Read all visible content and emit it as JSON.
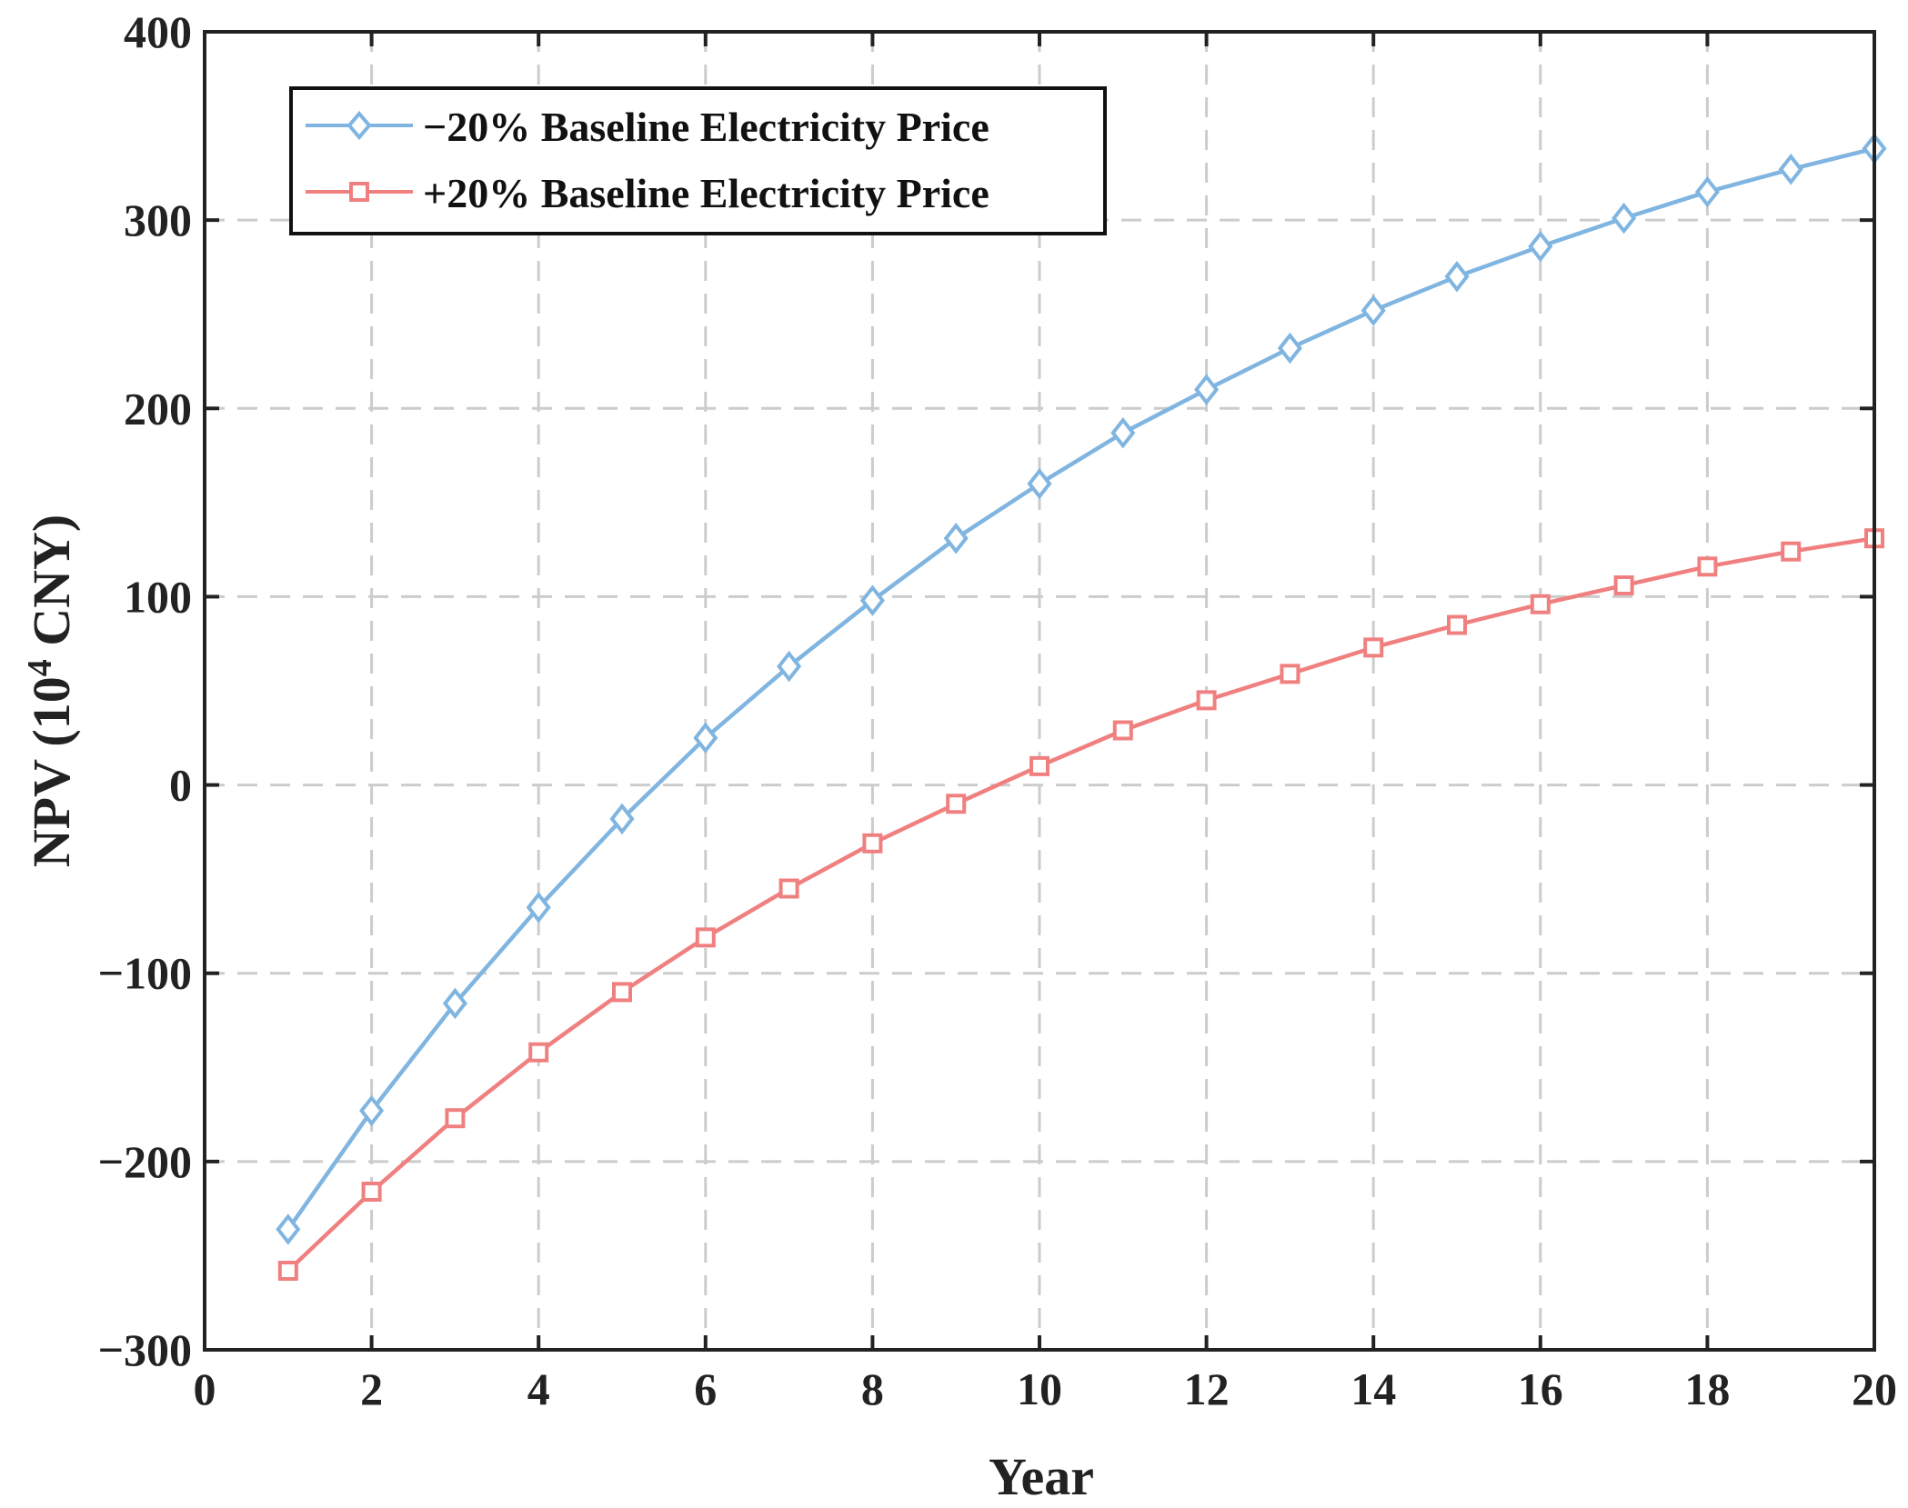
{
  "chart_data": {
    "type": "line",
    "title": "",
    "xlabel": "Year",
    "ylabel_main": "NPV (10",
    "ylabel_sup": "4",
    "ylabel_unit": " CNY)",
    "xlim": [
      0,
      20
    ],
    "ylim": [
      -300,
      400
    ],
    "xticks": [
      0,
      2,
      4,
      6,
      8,
      10,
      12,
      14,
      16,
      18,
      20
    ],
    "yticks": [
      -300,
      -200,
      -100,
      0,
      100,
      200,
      300,
      400
    ],
    "xtick_labels": [
      "0",
      "2",
      "4",
      "6",
      "8",
      "10",
      "12",
      "14",
      "16",
      "18",
      "20"
    ],
    "ytick_labels": [
      "−300",
      "−200",
      "−100",
      "0",
      "100",
      "200",
      "300",
      "400"
    ],
    "grid": true,
    "legend_position": "top-left",
    "x": [
      1,
      2,
      3,
      4,
      5,
      6,
      7,
      8,
      9,
      10,
      11,
      12,
      13,
      14,
      15,
      16,
      17,
      18,
      19,
      20
    ],
    "series": [
      {
        "name": "−20% Baseline Electricity Price",
        "color": "#7FB5E0",
        "marker": "diamond",
        "values": [
          -236,
          -173,
          -116,
          -65,
          -18,
          25,
          63,
          98,
          131,
          160,
          187,
          210,
          232,
          252,
          270,
          286,
          301,
          315,
          327,
          338
        ]
      },
      {
        "name": "+20% Baseline Electricity Price",
        "color": "#F08080",
        "marker": "square",
        "values": [
          -258,
          -216,
          -177,
          -142,
          -110,
          -81,
          -55,
          -31,
          -10,
          10,
          29,
          45,
          59,
          73,
          85,
          96,
          106,
          116,
          124,
          131
        ]
      }
    ]
  }
}
